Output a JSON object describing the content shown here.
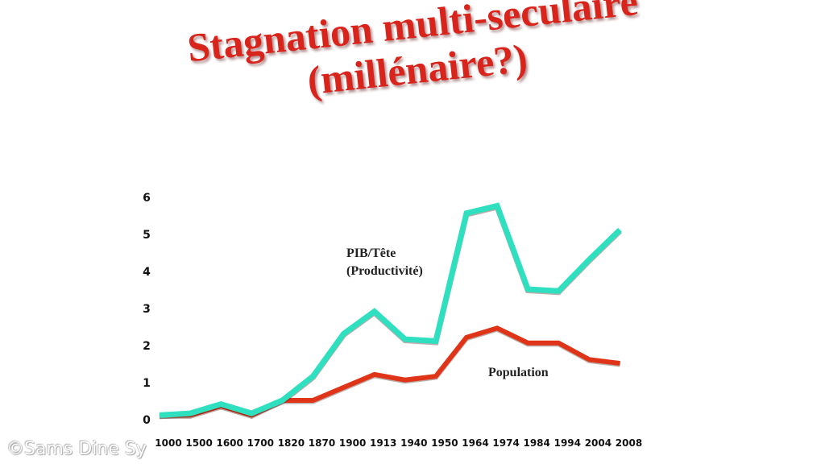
{
  "title_line1": "Stagnation multi-seculaire",
  "title_line2": "(millénaire?)",
  "watermark": "©Sams Dine Sy",
  "colors": {
    "title": "#d9241c",
    "productivity": "#2fe0c0",
    "population": "#e03418"
  },
  "chart_data": {
    "type": "line",
    "categories": [
      "1000",
      "1500",
      "1600",
      "1700",
      "1820",
      "1870",
      "1900",
      "1913",
      "1940",
      "1950",
      "1964",
      "1974",
      "1984",
      "1994",
      "2004",
      "2008"
    ],
    "yticks": [
      0,
      1,
      2,
      3,
      4,
      5,
      6
    ],
    "ylim": [
      0,
      6
    ],
    "series": [
      {
        "name": "PIB/Tête (Productivité)",
        "label_lines": [
          "PIB/Tête",
          "(Productivité)"
        ],
        "color": "#2fe0c0",
        "values": [
          0.1,
          0.15,
          0.4,
          0.15,
          0.5,
          1.15,
          2.3,
          2.9,
          2.15,
          2.1,
          5.55,
          5.75,
          3.5,
          3.45,
          4.3,
          5.1
        ]
      },
      {
        "name": "Population",
        "label_lines": [
          "Population"
        ],
        "color": "#e03418",
        "values": [
          0.1,
          0.1,
          0.35,
          0.1,
          0.5,
          0.5,
          0.85,
          1.2,
          1.05,
          1.15,
          2.2,
          2.45,
          2.05,
          2.05,
          1.6,
          1.5
        ]
      }
    ]
  }
}
